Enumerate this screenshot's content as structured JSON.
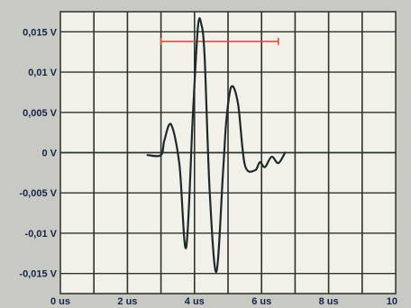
{
  "chart_data": {
    "type": "line",
    "title": "",
    "xlabel": "",
    "ylabel": "",
    "xlim": [
      0,
      10
    ],
    "ylim": [
      -0.0175,
      0.0175
    ],
    "x_unit": "us",
    "y_unit": "V",
    "grid": true,
    "x_ticks": [
      {
        "value": 0,
        "label": "0 us"
      },
      {
        "value": 2,
        "label": "2 us"
      },
      {
        "value": 4,
        "label": "4 us"
      },
      {
        "value": 6,
        "label": "6 us"
      },
      {
        "value": 8,
        "label": "8 us"
      },
      {
        "value": 10,
        "label": "10"
      }
    ],
    "y_ticks": [
      {
        "value": 0.015,
        "label": "0,015 V"
      },
      {
        "value": 0.01,
        "label": "0,01 V"
      },
      {
        "value": 0.005,
        "label": "0,005 V"
      },
      {
        "value": 0,
        "label": "0 V"
      },
      {
        "value": -0.005,
        "label": "-0,005 V"
      },
      {
        "value": -0.01,
        "label": "-0,01 V"
      },
      {
        "value": -0.015,
        "label": "-0,015 V"
      }
    ],
    "series": [
      {
        "color": "#1e2a2a",
        "x": [
          2.6,
          3.0,
          3.1,
          3.3,
          3.55,
          3.75,
          3.95,
          4.1,
          4.2,
          4.3,
          4.45,
          4.65,
          4.85,
          4.95,
          5.1,
          5.3,
          5.5,
          5.8,
          5.95,
          6.1,
          6.3,
          6.5,
          6.7
        ],
        "y": [
          -0.0003,
          -0.0003,
          0.0015,
          0.0035,
          -0.0015,
          -0.0118,
          0.0045,
          0.0155,
          0.016,
          0.012,
          -0.0045,
          -0.0148,
          -0.0025,
          0.004,
          0.0082,
          0.006,
          -0.0015,
          -0.0022,
          -0.0012,
          -0.0018,
          -0.0005,
          -0.0013,
          0.0
        ]
      }
    ],
    "markers": [
      {
        "type": "horizontal-bracket",
        "color": "#e8483c",
        "x_start": 3.0,
        "x_end": 6.5,
        "y": 0.0138
      }
    ]
  }
}
